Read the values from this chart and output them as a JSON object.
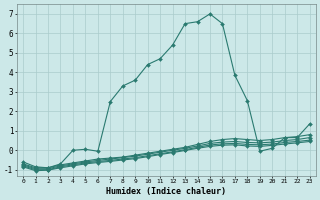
{
  "title": "",
  "xlabel": "Humidex (Indice chaleur)",
  "ylabel": "",
  "bg_color": "#cce8e8",
  "grid_color": "#aacccc",
  "line_color": "#2a7a70",
  "series": [
    {
      "x": [
        0,
        1,
        2,
        3,
        4,
        5,
        6,
        7,
        8,
        9,
        10,
        11,
        12,
        13,
        14,
        15,
        16,
        17,
        18,
        19,
        20,
        21,
        22,
        23
      ],
      "y": [
        -0.6,
        -0.85,
        -0.9,
        -0.7,
        0.0,
        0.05,
        -0.05,
        2.5,
        3.3,
        3.6,
        4.4,
        4.7,
        5.4,
        6.5,
        6.6,
        7.0,
        6.5,
        3.85,
        2.55,
        -0.05,
        0.1,
        0.65,
        0.65,
        1.35
      ]
    },
    {
      "x": [
        0,
        1,
        2,
        3,
        4,
        5,
        6,
        7,
        8,
        9,
        10,
        11,
        12,
        13,
        14,
        15,
        16,
        17,
        18,
        19,
        20,
        21,
        22,
        23
      ],
      "y": [
        -0.7,
        -0.9,
        -0.9,
        -0.75,
        -0.65,
        -0.55,
        -0.45,
        -0.4,
        -0.35,
        -0.25,
        -0.15,
        -0.05,
        0.05,
        0.15,
        0.3,
        0.45,
        0.55,
        0.6,
        0.55,
        0.5,
        0.55,
        0.65,
        0.7,
        0.8
      ]
    },
    {
      "x": [
        0,
        1,
        2,
        3,
        4,
        5,
        6,
        7,
        8,
        9,
        10,
        11,
        12,
        13,
        14,
        15,
        16,
        17,
        18,
        19,
        20,
        21,
        22,
        23
      ],
      "y": [
        -0.75,
        -0.95,
        -0.95,
        -0.8,
        -0.7,
        -0.6,
        -0.52,
        -0.45,
        -0.38,
        -0.3,
        -0.2,
        -0.1,
        0.0,
        0.1,
        0.22,
        0.35,
        0.42,
        0.45,
        0.4,
        0.38,
        0.42,
        0.5,
        0.55,
        0.65
      ]
    },
    {
      "x": [
        0,
        1,
        2,
        3,
        4,
        5,
        6,
        7,
        8,
        9,
        10,
        11,
        12,
        13,
        14,
        15,
        16,
        17,
        18,
        19,
        20,
        21,
        22,
        23
      ],
      "y": [
        -0.8,
        -1.0,
        -1.0,
        -0.85,
        -0.75,
        -0.65,
        -0.58,
        -0.52,
        -0.45,
        -0.38,
        -0.28,
        -0.18,
        -0.08,
        0.03,
        0.15,
        0.27,
        0.33,
        0.35,
        0.3,
        0.28,
        0.32,
        0.4,
        0.45,
        0.52
      ]
    },
    {
      "x": [
        0,
        1,
        2,
        3,
        4,
        5,
        6,
        7,
        8,
        9,
        10,
        11,
        12,
        13,
        14,
        15,
        16,
        17,
        18,
        19,
        20,
        21,
        22,
        23
      ],
      "y": [
        -0.85,
        -1.05,
        -1.02,
        -0.9,
        -0.8,
        -0.7,
        -0.63,
        -0.57,
        -0.5,
        -0.43,
        -0.33,
        -0.22,
        -0.12,
        -0.01,
        0.1,
        0.2,
        0.26,
        0.28,
        0.22,
        0.2,
        0.25,
        0.32,
        0.38,
        0.45
      ]
    }
  ],
  "xlim": [
    -0.5,
    23.5
  ],
  "ylim": [
    -1.3,
    7.5
  ],
  "xticks": [
    0,
    1,
    2,
    3,
    4,
    5,
    6,
    7,
    8,
    9,
    10,
    11,
    12,
    13,
    14,
    15,
    16,
    17,
    18,
    19,
    20,
    21,
    22,
    23
  ],
  "yticks": [
    -1,
    0,
    1,
    2,
    3,
    4,
    5,
    6,
    7
  ],
  "marker": "D",
  "markersize": 2.0,
  "linewidth": 0.8
}
